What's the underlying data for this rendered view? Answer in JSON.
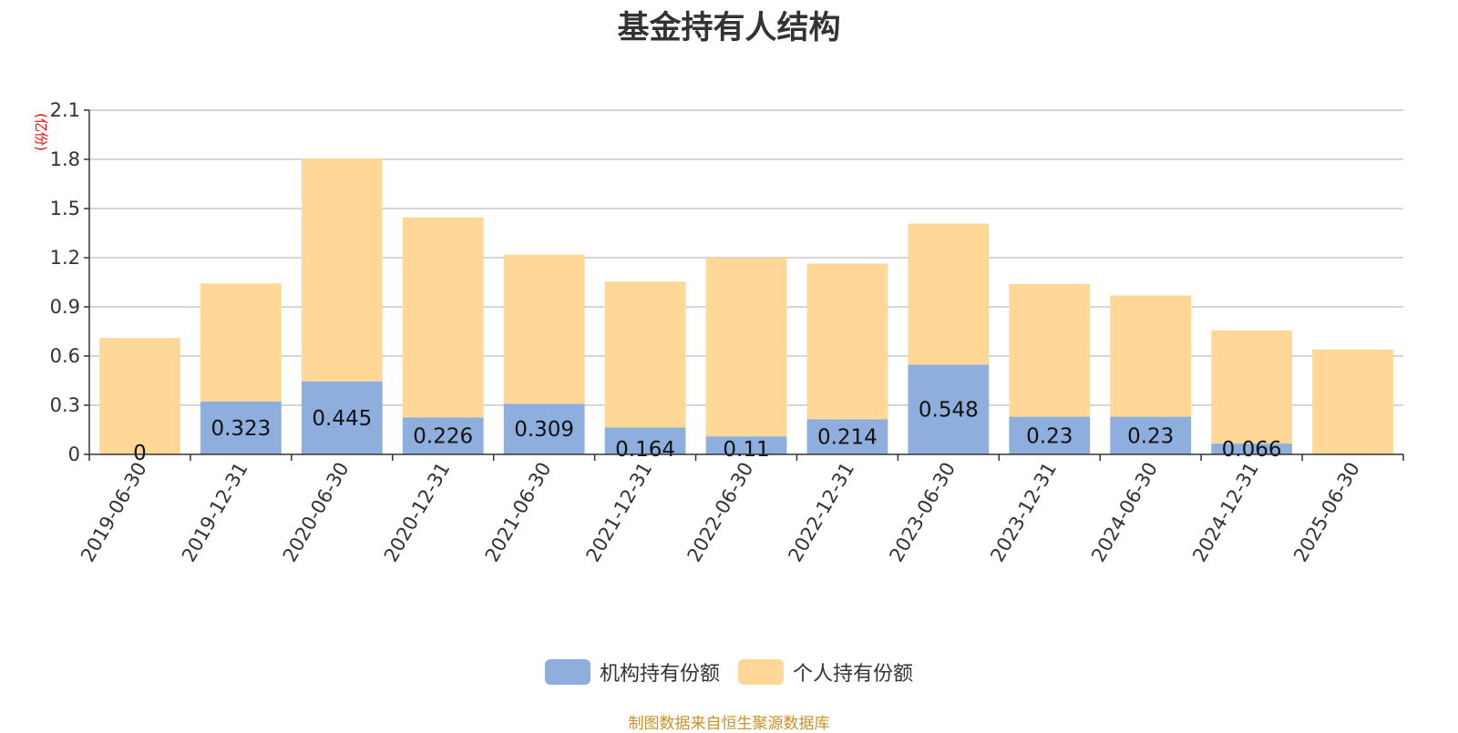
{
  "chart_data": {
    "type": "bar",
    "stacked": true,
    "title": "基金持有人结构",
    "unit_label": "(亿份)",
    "categories": [
      "2019-06-30",
      "2019-12-31",
      "2020-06-30",
      "2020-12-31",
      "2021-06-30",
      "2021-12-31",
      "2022-06-30",
      "2022-12-31",
      "2023-06-30",
      "2023-12-31",
      "2024-06-30",
      "2024-12-31",
      "2025-06-30"
    ],
    "ylim": [
      0,
      2.1
    ],
    "yticks": [
      "0",
      "0.3",
      "0.6",
      "0.9",
      "1.2",
      "1.5",
      "1.8",
      "2.1"
    ],
    "grid": true,
    "legend_position": "bottom-center",
    "series": [
      {
        "name": "机构持有份额",
        "color": "#8eaedd",
        "values": [
          0,
          0.323,
          0.445,
          0.226,
          0.309,
          0.164,
          0.11,
          0.214,
          0.548,
          0.23,
          0.23,
          0.066,
          0
        ],
        "labels": [
          "0",
          "0.323",
          "0.445",
          "0.226",
          "0.309",
          "0.164",
          "0.11",
          "0.214",
          "0.548",
          "0.23",
          "0.23",
          "0.066",
          ""
        ]
      },
      {
        "name": "个人持有份额",
        "color": "#ffd898",
        "values": [
          0.71,
          0.72,
          1.36,
          1.22,
          0.91,
          0.89,
          1.09,
          0.95,
          0.86,
          0.81,
          0.74,
          0.69,
          0.64
        ]
      }
    ]
  },
  "footer": {
    "source": "制图数据来自恒生聚源数据库"
  }
}
